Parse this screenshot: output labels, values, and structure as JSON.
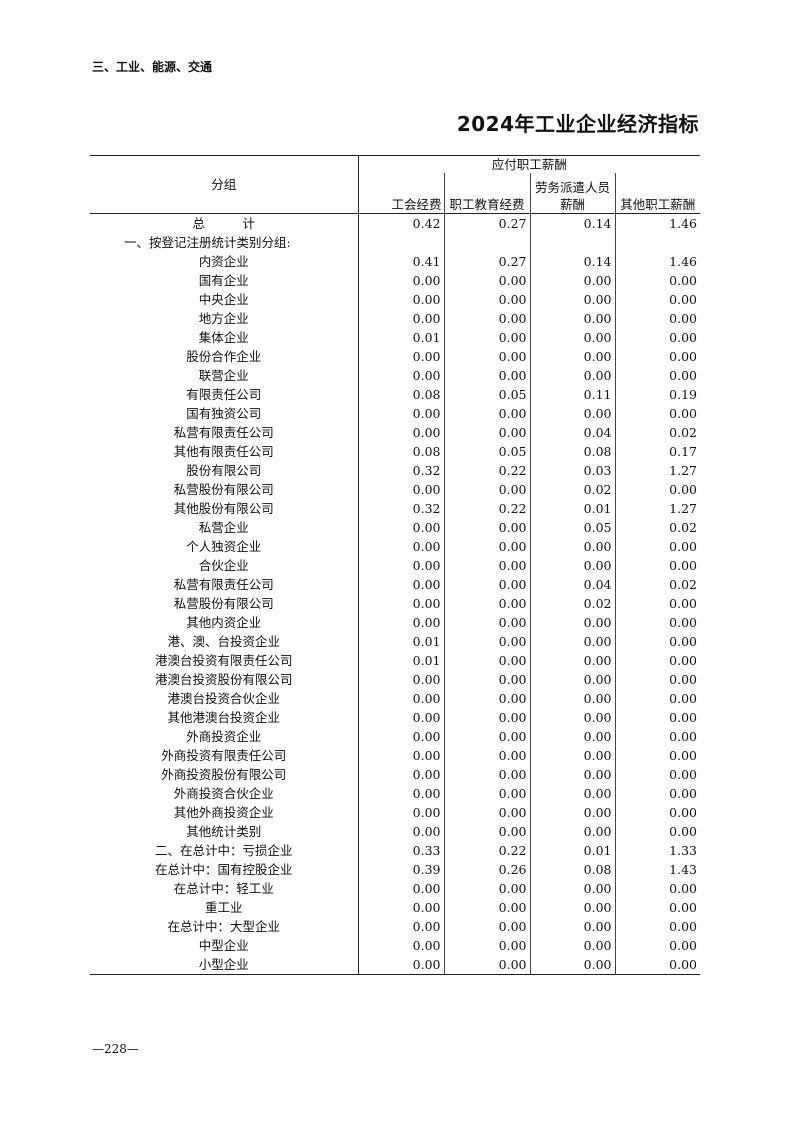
{
  "section_header": "三、工业、能源、交通",
  "title": "2024年工业企业经济指标",
  "table": {
    "group_header": "分组",
    "span_header": "应付职工薪酬",
    "columns": [
      "工会经费",
      "职工教育经费",
      "劳务派遣人员薪酬",
      "其他职工薪酬"
    ],
    "rows": [
      {
        "label": "总　　　计",
        "values": [
          "0.42",
          "0.27",
          "0.14",
          "1.46"
        ]
      },
      {
        "label": "一、按登记注册统计类别分组:",
        "values": []
      },
      {
        "label": "内资企业",
        "values": [
          "0.41",
          "0.27",
          "0.14",
          "1.46"
        ]
      },
      {
        "label": "国有企业",
        "values": [
          "0.00",
          "0.00",
          "0.00",
          "0.00"
        ]
      },
      {
        "label": "中央企业",
        "values": [
          "0.00",
          "0.00",
          "0.00",
          "0.00"
        ]
      },
      {
        "label": "地方企业",
        "values": [
          "0.00",
          "0.00",
          "0.00",
          "0.00"
        ]
      },
      {
        "label": "集体企业",
        "values": [
          "0.01",
          "0.00",
          "0.00",
          "0.00"
        ]
      },
      {
        "label": "股份合作企业",
        "values": [
          "0.00",
          "0.00",
          "0.00",
          "0.00"
        ]
      },
      {
        "label": "联营企业",
        "values": [
          "0.00",
          "0.00",
          "0.00",
          "0.00"
        ]
      },
      {
        "label": "有限责任公司",
        "values": [
          "0.08",
          "0.05",
          "0.11",
          "0.19"
        ]
      },
      {
        "label": "国有独资公司",
        "values": [
          "0.00",
          "0.00",
          "0.00",
          "0.00"
        ]
      },
      {
        "label": "私营有限责任公司",
        "values": [
          "0.00",
          "0.00",
          "0.04",
          "0.02"
        ]
      },
      {
        "label": "其他有限责任公司",
        "values": [
          "0.08",
          "0.05",
          "0.08",
          "0.17"
        ]
      },
      {
        "label": "股份有限公司",
        "values": [
          "0.32",
          "0.22",
          "0.03",
          "1.27"
        ]
      },
      {
        "label": "私营股份有限公司",
        "values": [
          "0.00",
          "0.00",
          "0.02",
          "0.00"
        ]
      },
      {
        "label": "其他股份有限公司",
        "values": [
          "0.32",
          "0.22",
          "0.01",
          "1.27"
        ]
      },
      {
        "label": "私营企业",
        "values": [
          "0.00",
          "0.00",
          "0.05",
          "0.02"
        ]
      },
      {
        "label": "个人独资企业",
        "values": [
          "0.00",
          "0.00",
          "0.00",
          "0.00"
        ]
      },
      {
        "label": "合伙企业",
        "values": [
          "0.00",
          "0.00",
          "0.00",
          "0.00"
        ]
      },
      {
        "label": "私营有限责任公司",
        "values": [
          "0.00",
          "0.00",
          "0.04",
          "0.02"
        ]
      },
      {
        "label": "私营股份有限公司",
        "values": [
          "0.00",
          "0.00",
          "0.02",
          "0.00"
        ]
      },
      {
        "label": "其他内资企业",
        "values": [
          "0.00",
          "0.00",
          "0.00",
          "0.00"
        ]
      },
      {
        "label": "港、澳、台投资企业",
        "values": [
          "0.01",
          "0.00",
          "0.00",
          "0.00"
        ]
      },
      {
        "label": "港澳台投资有限责任公司",
        "values": [
          "0.01",
          "0.00",
          "0.00",
          "0.00"
        ]
      },
      {
        "label": "港澳台投资股份有限公司",
        "values": [
          "0.00",
          "0.00",
          "0.00",
          "0.00"
        ]
      },
      {
        "label": "港澳台投资合伙企业",
        "values": [
          "0.00",
          "0.00",
          "0.00",
          "0.00"
        ]
      },
      {
        "label": "其他港澳台投资企业",
        "values": [
          "0.00",
          "0.00",
          "0.00",
          "0.00"
        ]
      },
      {
        "label": "外商投资企业",
        "values": [
          "0.00",
          "0.00",
          "0.00",
          "0.00"
        ]
      },
      {
        "label": "外商投资有限责任公司",
        "values": [
          "0.00",
          "0.00",
          "0.00",
          "0.00"
        ]
      },
      {
        "label": "外商投资股份有限公司",
        "values": [
          "0.00",
          "0.00",
          "0.00",
          "0.00"
        ]
      },
      {
        "label": "外商投资合伙企业",
        "values": [
          "0.00",
          "0.00",
          "0.00",
          "0.00"
        ]
      },
      {
        "label": "其他外商投资企业",
        "values": [
          "0.00",
          "0.00",
          "0.00",
          "0.00"
        ]
      },
      {
        "label": "其他统计类别",
        "values": [
          "0.00",
          "0.00",
          "0.00",
          "0.00"
        ]
      },
      {
        "label": "二、在总计中：亏损企业",
        "values": [
          "0.33",
          "0.22",
          "0.01",
          "1.33"
        ]
      },
      {
        "label": "在总计中：国有控股企业",
        "values": [
          "0.39",
          "0.26",
          "0.08",
          "1.43"
        ]
      },
      {
        "label": "在总计中：轻工业",
        "values": [
          "0.00",
          "0.00",
          "0.00",
          "0.00"
        ]
      },
      {
        "label": "重工业",
        "values": [
          "0.00",
          "0.00",
          "0.00",
          "0.00"
        ]
      },
      {
        "label": "在总计中：大型企业",
        "values": [
          "0.00",
          "0.00",
          "0.00",
          "0.00"
        ]
      },
      {
        "label": "中型企业",
        "values": [
          "0.00",
          "0.00",
          "0.00",
          "0.00"
        ]
      },
      {
        "label": "小型企业",
        "values": [
          "0.00",
          "0.00",
          "0.00",
          "0.00"
        ]
      }
    ]
  },
  "page_number": "—228—"
}
